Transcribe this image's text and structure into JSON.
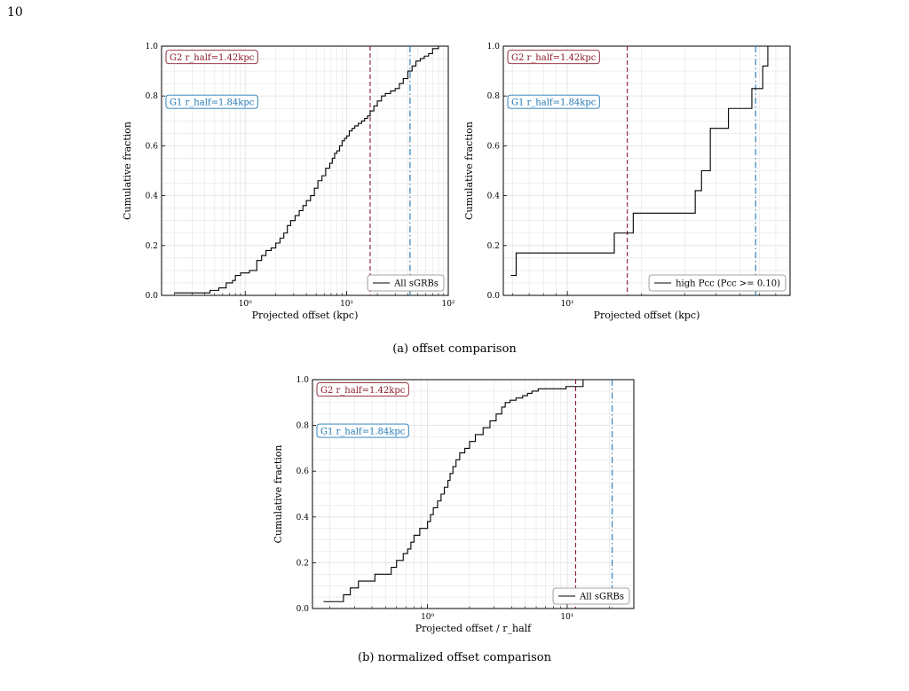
{
  "page": {
    "number": "10"
  },
  "captions": {
    "a": "(a) offset comparison",
    "b": "(b) normalized offset comparison"
  },
  "colors": {
    "g2": "#8b1a2b",
    "g1": "#1f77b4",
    "step": "#000000",
    "grid": "#e3e3e3"
  },
  "chart_data": [
    {
      "type": "line",
      "panel": "a-left",
      "xlabel": "Projected offset (kpc)",
      "ylabel": "Cumulative fraction",
      "xscale": "log",
      "xlim": [
        0.15,
        100
      ],
      "ylim": [
        0,
        1.0
      ],
      "xticks": [
        {
          "v": 1,
          "t": "10⁰"
        },
        {
          "v": 10,
          "t": "10¹"
        },
        {
          "v": 100,
          "t": "10²"
        }
      ],
      "yticks": [
        0.0,
        0.2,
        0.4,
        0.6,
        0.8,
        1.0
      ],
      "grid": true,
      "legend": {
        "label": "All sGRBs",
        "position": "lower-right"
      },
      "annotations": [
        {
          "text": "G2 r_half=1.42kpc",
          "color": "#8b1a2b",
          "y": 0.955
        },
        {
          "text": "G1 r_half=1.84kpc",
          "color": "#1f77b4",
          "y": 0.775
        }
      ],
      "vlines": [
        {
          "x": 17,
          "color": "#8b1a2b",
          "style": "dashed"
        },
        {
          "x": 42,
          "color": "#1f77b4",
          "style": "dashdot"
        }
      ],
      "series": [
        {
          "x": [
            0.2,
            0.45,
            0.55,
            0.65,
            0.75,
            0.8,
            0.9,
            1.1,
            1.3,
            1.45,
            1.6,
            1.8,
            2.0,
            2.2,
            2.4,
            2.6,
            2.8,
            3.1,
            3.4,
            3.7,
            4.0,
            4.4,
            4.8,
            5.2,
            5.7,
            6.2,
            6.8,
            7.2,
            7.6,
            8.0,
            8.5,
            9.0,
            9.5,
            10.0,
            10.6,
            11.3,
            12.0,
            13.0,
            14.0,
            15.0,
            16.0,
            17.0,
            18.5,
            20.0,
            22.0,
            24.0,
            27.0,
            30.0,
            33.0,
            36.0,
            40.0,
            44.0,
            48.0,
            53.0,
            58.0,
            64.0,
            70.0,
            80.0
          ],
          "y": [
            0.01,
            0.02,
            0.03,
            0.05,
            0.06,
            0.08,
            0.09,
            0.1,
            0.14,
            0.16,
            0.18,
            0.19,
            0.21,
            0.23,
            0.25,
            0.28,
            0.3,
            0.32,
            0.34,
            0.36,
            0.38,
            0.4,
            0.43,
            0.46,
            0.48,
            0.51,
            0.53,
            0.55,
            0.57,
            0.58,
            0.6,
            0.62,
            0.63,
            0.64,
            0.66,
            0.67,
            0.68,
            0.69,
            0.7,
            0.71,
            0.72,
            0.74,
            0.76,
            0.78,
            0.8,
            0.81,
            0.82,
            0.83,
            0.85,
            0.87,
            0.9,
            0.92,
            0.94,
            0.95,
            0.96,
            0.97,
            0.99,
            1.0
          ]
        }
      ]
    },
    {
      "type": "line",
      "panel": "a-right",
      "xlabel": "Projected offset (kpc)",
      "ylabel": "Cumulative fraction",
      "xscale": "log",
      "xlim": [
        5.5,
        80
      ],
      "ylim": [
        0,
        1.0
      ],
      "xticks": [
        {
          "v": 10,
          "t": "10¹"
        }
      ],
      "yticks": [
        0.0,
        0.2,
        0.4,
        0.6,
        0.8,
        1.0
      ],
      "grid": true,
      "legend": {
        "label": "high Pcc (Pcc >= 0.10)",
        "position": "lower-right"
      },
      "annotations": [
        {
          "text": "G2 r_half=1.42kpc",
          "color": "#8b1a2b",
          "y": 0.955
        },
        {
          "text": "G1 r_half=1.84kpc",
          "color": "#1f77b4",
          "y": 0.775
        }
      ],
      "vlines": [
        {
          "x": 17.5,
          "color": "#8b1a2b",
          "style": "dashed"
        },
        {
          "x": 58,
          "color": "#1f77b4",
          "style": "dashdot"
        }
      ],
      "series": [
        {
          "x": [
            5.9,
            6.2,
            15.5,
            18.5,
            33,
            35,
            38,
            45,
            52,
            56,
            62,
            65
          ],
          "y": [
            0.08,
            0.17,
            0.25,
            0.33,
            0.42,
            0.5,
            0.67,
            0.75,
            0.75,
            0.83,
            0.92,
            1.0
          ]
        }
      ]
    },
    {
      "type": "line",
      "panel": "b",
      "xlabel": "Projected offset / r_half",
      "ylabel": "Cumulative fraction",
      "xscale": "log",
      "xlim": [
        0.15,
        30
      ],
      "ylim": [
        0,
        1.0
      ],
      "xticks": [
        {
          "v": 1,
          "t": "10⁰"
        },
        {
          "v": 10,
          "t": "10¹"
        }
      ],
      "yticks": [
        0.0,
        0.2,
        0.4,
        0.6,
        0.8,
        1.0
      ],
      "grid": true,
      "legend": {
        "label": "All sGRBs",
        "position": "lower-right"
      },
      "annotations": [
        {
          "text": "G2 r_half=1.42kpc",
          "color": "#8b1a2b",
          "y": 0.955
        },
        {
          "text": "G1 r_half=1.84kpc",
          "color": "#1f77b4",
          "y": 0.775
        }
      ],
      "vlines": [
        {
          "x": 11.5,
          "color": "#8b1a2b",
          "style": "dashed"
        },
        {
          "x": 21,
          "color": "#1f77b4",
          "style": "dashdot"
        }
      ],
      "series": [
        {
          "x": [
            0.18,
            0.25,
            0.28,
            0.32,
            0.42,
            0.55,
            0.6,
            0.67,
            0.72,
            0.76,
            0.8,
            0.88,
            1.0,
            1.05,
            1.1,
            1.18,
            1.25,
            1.32,
            1.4,
            1.45,
            1.52,
            1.6,
            1.7,
            1.85,
            2.0,
            2.2,
            2.5,
            2.8,
            3.1,
            3.4,
            3.6,
            3.9,
            4.3,
            4.8,
            5.2,
            5.6,
            6.2,
            9.8,
            13.0
          ],
          "y": [
            0.03,
            0.06,
            0.09,
            0.12,
            0.15,
            0.18,
            0.21,
            0.24,
            0.26,
            0.29,
            0.32,
            0.35,
            0.38,
            0.41,
            0.44,
            0.47,
            0.5,
            0.53,
            0.56,
            0.59,
            0.62,
            0.65,
            0.68,
            0.7,
            0.73,
            0.76,
            0.79,
            0.82,
            0.85,
            0.88,
            0.9,
            0.91,
            0.92,
            0.93,
            0.94,
            0.95,
            0.96,
            0.97,
            1.0
          ]
        }
      ]
    }
  ]
}
